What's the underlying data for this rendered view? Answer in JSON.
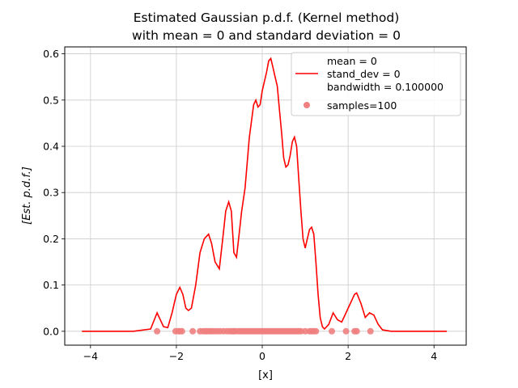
{
  "chart_data": {
    "type": "line",
    "title_line1": "Estimated Gaussian p.d.f. (Kernel method)",
    "title_line2": "with mean = 0 and standard deviation = 0",
    "xlabel": "[x]",
    "ylabel": "[Est. p.d.f.]",
    "xlim": [
      -4.6,
      4.75
    ],
    "ylim": [
      -0.03,
      0.615
    ],
    "x_ticks": [
      -4,
      -2,
      0,
      2,
      4
    ],
    "x_tick_labels": [
      "−4",
      "−2",
      "0",
      "2",
      "4"
    ],
    "y_ticks": [
      0.0,
      0.1,
      0.2,
      0.3,
      0.4,
      0.5,
      0.6
    ],
    "y_tick_labels": [
      "0.0",
      "0.1",
      "0.2",
      "0.3",
      "0.4",
      "0.5",
      "0.6"
    ],
    "grid": true,
    "legend_position": "upper-right",
    "legend": {
      "line_label_1": "mean = 0",
      "line_label_2": "stand_dev = 0",
      "line_label_3": "bandwidth = 0.100000",
      "scatter_label": "samples=100"
    },
    "colors": {
      "line": "#ff0000",
      "samples": "#f08080",
      "grid": "#cccccc"
    },
    "series": [
      {
        "type": "line",
        "x": [
          -4.2,
          -3.0,
          -2.6,
          -2.45,
          -2.3,
          -2.2,
          -2.1,
          -2.0,
          -1.92,
          -1.85,
          -1.78,
          -1.72,
          -1.65,
          -1.55,
          -1.45,
          -1.35,
          -1.25,
          -1.18,
          -1.1,
          -1.0,
          -0.92,
          -0.85,
          -0.78,
          -0.72,
          -0.66,
          -0.6,
          -0.55,
          -0.48,
          -0.4,
          -0.3,
          -0.2,
          -0.15,
          -0.1,
          -0.05,
          0.0,
          0.1,
          0.15,
          0.2,
          0.25,
          0.3,
          0.35,
          0.4,
          0.45,
          0.5,
          0.55,
          0.6,
          0.65,
          0.7,
          0.75,
          0.8,
          0.85,
          0.9,
          0.95,
          1.0,
          1.05,
          1.1,
          1.15,
          1.2,
          1.25,
          1.3,
          1.35,
          1.4,
          1.45,
          1.55,
          1.65,
          1.75,
          1.85,
          1.95,
          2.05,
          2.15,
          2.2,
          2.3,
          2.4,
          2.5,
          2.6,
          2.7,
          2.8,
          3.0,
          4.3
        ],
        "y": [
          0.0,
          0.0,
          0.005,
          0.04,
          0.01,
          0.008,
          0.04,
          0.08,
          0.095,
          0.08,
          0.05,
          0.045,
          0.05,
          0.1,
          0.17,
          0.2,
          0.21,
          0.19,
          0.15,
          0.135,
          0.2,
          0.26,
          0.28,
          0.26,
          0.17,
          0.16,
          0.2,
          0.26,
          0.31,
          0.42,
          0.49,
          0.5,
          0.485,
          0.49,
          0.52,
          0.56,
          0.585,
          0.59,
          0.57,
          0.55,
          0.53,
          0.48,
          0.43,
          0.375,
          0.355,
          0.36,
          0.38,
          0.41,
          0.42,
          0.4,
          0.33,
          0.26,
          0.2,
          0.18,
          0.2,
          0.22,
          0.225,
          0.21,
          0.15,
          0.08,
          0.03,
          0.01,
          0.005,
          0.015,
          0.04,
          0.025,
          0.02,
          0.04,
          0.06,
          0.08,
          0.083,
          0.06,
          0.03,
          0.04,
          0.035,
          0.015,
          0.003,
          0.0,
          0.0
        ]
      },
      {
        "type": "scatter",
        "name": "samples=100",
        "x": [
          -2.45,
          -2.02,
          -1.95,
          -1.92,
          -1.87,
          -1.62,
          -1.45,
          -1.38,
          -1.32,
          -1.28,
          -1.22,
          -1.18,
          -1.12,
          -1.05,
          -0.98,
          -0.9,
          -0.82,
          -0.75,
          -0.7,
          -0.66,
          -0.62,
          -0.55,
          -0.5,
          -0.45,
          -0.4,
          -0.35,
          -0.3,
          -0.25,
          -0.2,
          -0.15,
          -0.1,
          -0.05,
          0.0,
          0.05,
          0.1,
          0.15,
          0.2,
          0.25,
          0.3,
          0.35,
          0.4,
          0.45,
          0.5,
          0.55,
          0.6,
          0.65,
          0.7,
          0.75,
          0.8,
          0.85,
          0.9,
          1.0,
          1.1,
          1.15,
          1.2,
          1.25,
          1.62,
          1.95,
          2.15,
          2.2,
          2.52
        ],
        "y": [
          0,
          0,
          0,
          0,
          0,
          0,
          0,
          0,
          0,
          0,
          0,
          0,
          0,
          0,
          0,
          0,
          0,
          0,
          0,
          0,
          0,
          0,
          0,
          0,
          0,
          0,
          0,
          0,
          0,
          0,
          0,
          0,
          0,
          0,
          0,
          0,
          0,
          0,
          0,
          0,
          0,
          0,
          0,
          0,
          0,
          0,
          0,
          0,
          0,
          0,
          0,
          0,
          0,
          0,
          0,
          0,
          0,
          0,
          0,
          0,
          0
        ]
      }
    ]
  }
}
